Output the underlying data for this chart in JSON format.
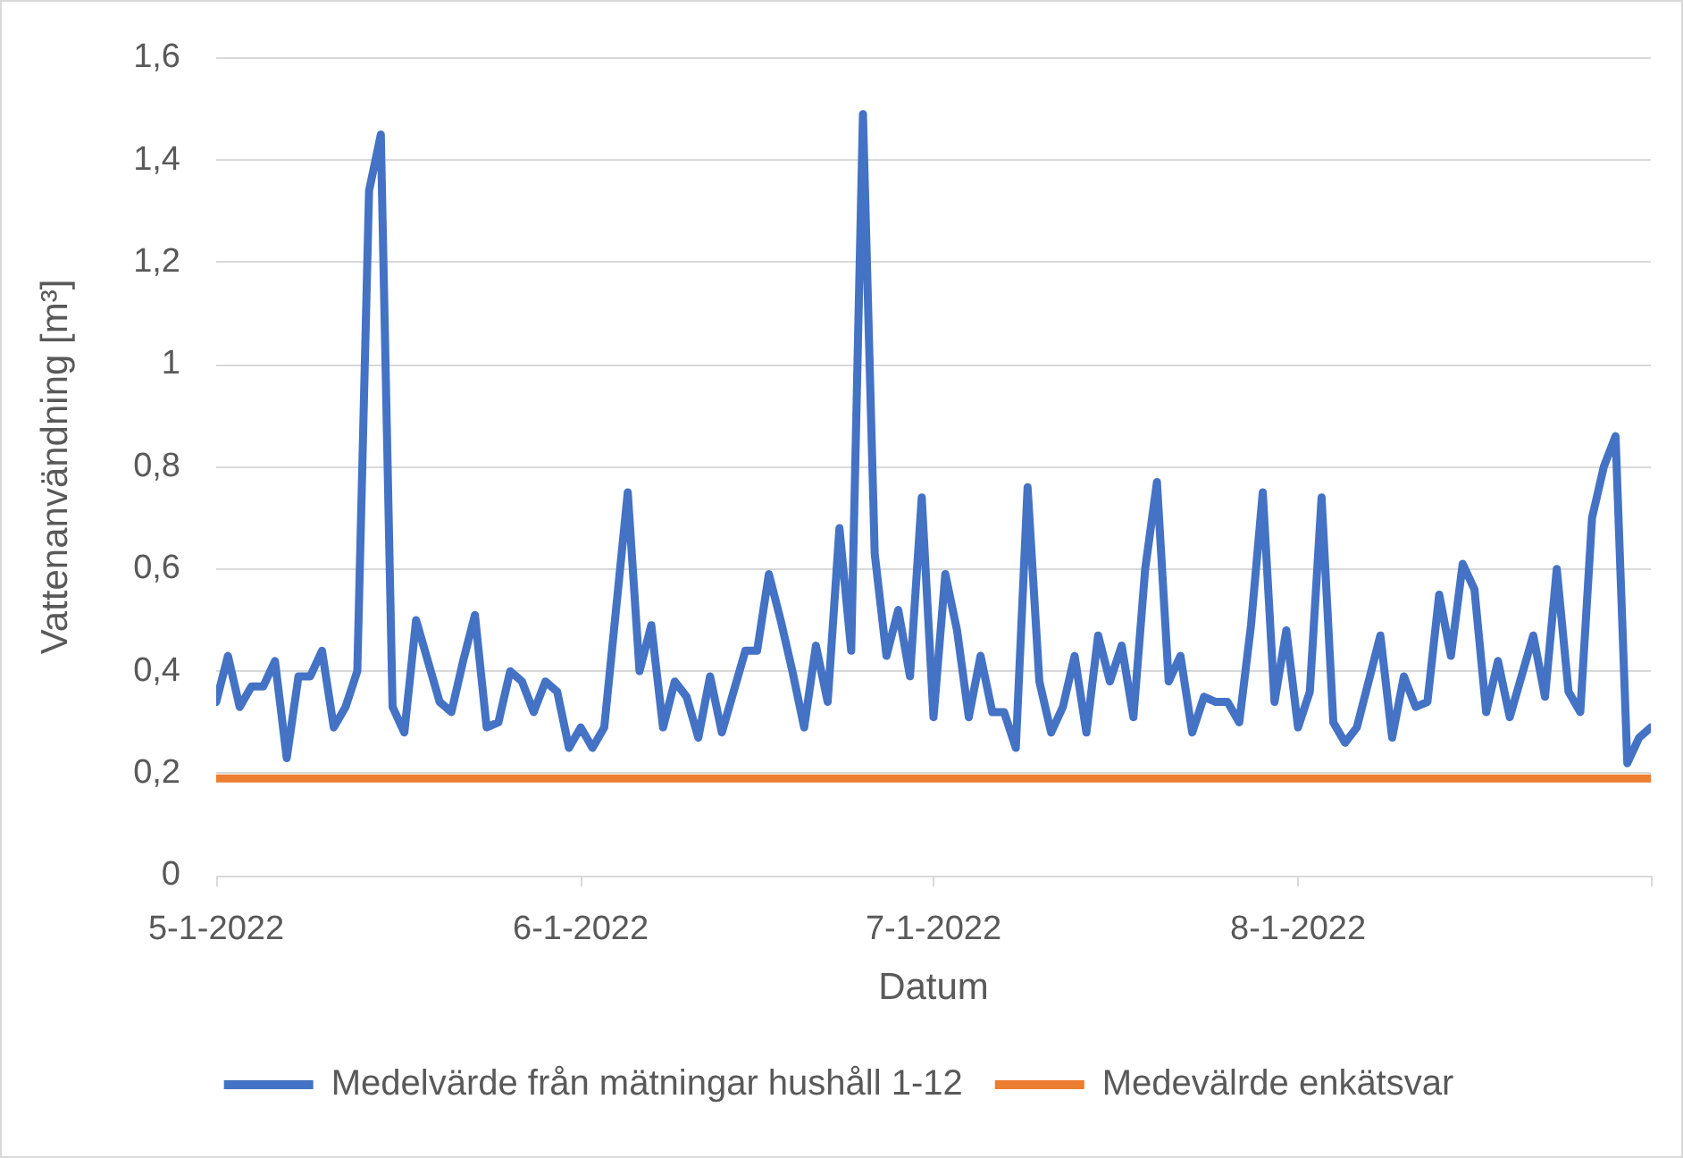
{
  "chart_data": {
    "type": "line",
    "xlabel": "Datum",
    "ylabel": "Vattenanvändning [m³]",
    "x": [
      "2022-05-01",
      "2022-05-02",
      "2022-05-03",
      "2022-05-04",
      "2022-05-05",
      "2022-05-06",
      "2022-05-07",
      "2022-05-08",
      "2022-05-09",
      "2022-05-10",
      "2022-05-11",
      "2022-05-12",
      "2022-05-13",
      "2022-05-14",
      "2022-05-15",
      "2022-05-16",
      "2022-05-17",
      "2022-05-18",
      "2022-05-19",
      "2022-05-20",
      "2022-05-21",
      "2022-05-22",
      "2022-05-23",
      "2022-05-24",
      "2022-05-25",
      "2022-05-26",
      "2022-05-27",
      "2022-05-28",
      "2022-05-29",
      "2022-05-30",
      "2022-05-31",
      "2022-06-01",
      "2022-06-02",
      "2022-06-03",
      "2022-06-04",
      "2022-06-05",
      "2022-06-06",
      "2022-06-07",
      "2022-06-08",
      "2022-06-09",
      "2022-06-10",
      "2022-06-11",
      "2022-06-12",
      "2022-06-13",
      "2022-06-14",
      "2022-06-15",
      "2022-06-16",
      "2022-06-17",
      "2022-06-18",
      "2022-06-19",
      "2022-06-20",
      "2022-06-21",
      "2022-06-22",
      "2022-06-23",
      "2022-06-24",
      "2022-06-25",
      "2022-06-26",
      "2022-06-27",
      "2022-06-28",
      "2022-06-29",
      "2022-06-30",
      "2022-07-01",
      "2022-07-02",
      "2022-07-03",
      "2022-07-04",
      "2022-07-05",
      "2022-07-06",
      "2022-07-07",
      "2022-07-08",
      "2022-07-09",
      "2022-07-10",
      "2022-07-11",
      "2022-07-12",
      "2022-07-13",
      "2022-07-14",
      "2022-07-15",
      "2022-07-16",
      "2022-07-17",
      "2022-07-18",
      "2022-07-19",
      "2022-07-20",
      "2022-07-21",
      "2022-07-22",
      "2022-07-23",
      "2022-07-24",
      "2022-07-25",
      "2022-07-26",
      "2022-07-27",
      "2022-07-28",
      "2022-07-29",
      "2022-07-30",
      "2022-07-31",
      "2022-08-01",
      "2022-08-02",
      "2022-08-03",
      "2022-08-04",
      "2022-08-05",
      "2022-08-06",
      "2022-08-07",
      "2022-08-08",
      "2022-08-09",
      "2022-08-10",
      "2022-08-11",
      "2022-08-12",
      "2022-08-13",
      "2022-08-14",
      "2022-08-15",
      "2022-08-16",
      "2022-08-17",
      "2022-08-18",
      "2022-08-19",
      "2022-08-20",
      "2022-08-21",
      "2022-08-22",
      "2022-08-23",
      "2022-08-24",
      "2022-08-25",
      "2022-08-26",
      "2022-08-27",
      "2022-08-28",
      "2022-08-29",
      "2022-08-30",
      "2022-08-31"
    ],
    "series": [
      {
        "name": "Medelvärde från mätningar hushåll 1-12",
        "color": "#4472c4",
        "values": [
          0.34,
          0.43,
          0.33,
          0.37,
          0.37,
          0.42,
          0.23,
          0.39,
          0.39,
          0.44,
          0.29,
          0.33,
          0.4,
          1.34,
          1.45,
          0.33,
          0.28,
          0.5,
          0.42,
          0.34,
          0.32,
          0.42,
          0.51,
          0.29,
          0.3,
          0.4,
          0.38,
          0.32,
          0.38,
          0.36,
          0.25,
          0.29,
          0.25,
          0.29,
          0.52,
          0.75,
          0.4,
          0.49,
          0.29,
          0.38,
          0.35,
          0.27,
          0.39,
          0.28,
          0.36,
          0.44,
          0.44,
          0.59,
          0.5,
          0.4,
          0.29,
          0.45,
          0.34,
          0.68,
          0.44,
          1.49,
          0.63,
          0.43,
          0.52,
          0.39,
          0.74,
          0.31,
          0.59,
          0.48,
          0.31,
          0.43,
          0.32,
          0.32,
          0.25,
          0.76,
          0.38,
          0.28,
          0.33,
          0.43,
          0.28,
          0.47,
          0.38,
          0.45,
          0.31,
          0.6,
          0.77,
          0.38,
          0.43,
          0.28,
          0.35,
          0.34,
          0.34,
          0.3,
          0.49,
          0.75,
          0.34,
          0.48,
          0.29,
          0.36,
          0.74,
          0.3,
          0.26,
          0.29,
          0.38,
          0.47,
          0.27,
          0.39,
          0.33,
          0.34,
          0.55,
          0.43,
          0.61,
          0.56,
          0.32,
          0.42,
          0.31,
          0.39,
          0.47,
          0.35,
          0.6,
          0.36,
          0.32,
          0.7,
          0.8,
          0.86,
          0.22,
          0.27,
          0.29
        ]
      },
      {
        "name": "Medevälrde enkätsvar",
        "color": "#ed7d31",
        "x": [
          "2022-05-01",
          "2022-08-31"
        ],
        "values": [
          0.19,
          0.19
        ]
      }
    ],
    "xlim": [
      "2022-05-01",
      "2022-08-31"
    ],
    "xticks": [
      {
        "value": "2022-05-01",
        "label": "5-1-2022"
      },
      {
        "value": "2022-06-01",
        "label": "6-1-2022"
      },
      {
        "value": "2022-07-01",
        "label": "7-1-2022"
      },
      {
        "value": "2022-08-01",
        "label": "8-1-2022"
      },
      {
        "value": "2022-08-31",
        "label": null
      }
    ],
    "ylim": [
      0,
      1.6
    ],
    "yticks": [
      0,
      {
        "value": 0.2,
        "label": "0,2"
      },
      {
        "value": 0.4,
        "label": "0,4"
      },
      {
        "value": 0.6,
        "label": "0,6"
      },
      {
        "value": 0.8,
        "label": "0,8"
      },
      1,
      {
        "value": 1.2,
        "label": "1,2"
      },
      {
        "value": 1.4,
        "label": "1,4"
      },
      {
        "value": 1.6,
        "label": "1,6"
      }
    ],
    "grid": "y",
    "legend": "bottom",
    "marker": "none"
  }
}
